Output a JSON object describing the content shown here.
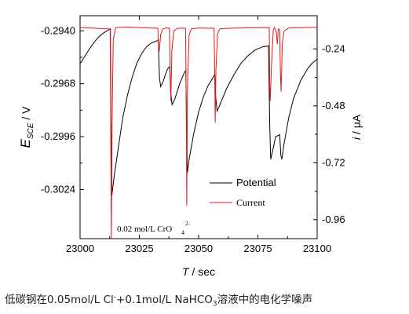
{
  "chart_data": {
    "type": "line",
    "x": {
      "label_var": "T",
      "label_unit": " / sec",
      "range": [
        23000,
        23100
      ],
      "ticks": [
        23000,
        23025,
        23050,
        23075,
        23100
      ],
      "tick_labels": [
        "23000",
        "23025",
        "23050",
        "23075",
        "23100"
      ]
    },
    "y_left": {
      "label_var": "E",
      "label_sub": "SCE",
      "label_unit": " / V",
      "range": [
        -0.305,
        -0.2932
      ],
      "ticks": [
        -0.294,
        -0.2968,
        -0.2996,
        -0.3024
      ],
      "tick_labels": [
        "-0.2940",
        "-0.2968",
        "-0.2996",
        "-0.3024"
      ]
    },
    "y_right": {
      "label_var": "i",
      "label_unit": " / μA",
      "range": [
        -1.04,
        -0.1
      ],
      "ticks": [
        -0.24,
        -0.48,
        -0.72,
        -0.96
      ],
      "tick_labels": [
        "-0.24",
        "-0.48",
        "-0.72",
        "-0.96"
      ]
    },
    "series": [
      {
        "name": "Potential",
        "axis": "left",
        "color": "#000000",
        "points": [
          [
            23000,
            -0.29575
          ],
          [
            23002,
            -0.29535
          ],
          [
            23004,
            -0.29495
          ],
          [
            23006,
            -0.2946
          ],
          [
            23008,
            -0.2943
          ],
          [
            23010,
            -0.2941
          ],
          [
            23012,
            -0.29395
          ],
          [
            23012.8,
            -0.2939
          ],
          [
            23013,
            -0.2987
          ],
          [
            23013.4,
            -0.3027
          ],
          [
            23014.5,
            -0.3016
          ],
          [
            23016,
            -0.3003
          ],
          [
            23018,
            -0.2986
          ],
          [
            23020,
            -0.2974
          ],
          [
            23022,
            -0.29645
          ],
          [
            23024,
            -0.2957
          ],
          [
            23026,
            -0.2952
          ],
          [
            23028,
            -0.29485
          ],
          [
            23030,
            -0.29465
          ],
          [
            23032,
            -0.29455
          ],
          [
            23033,
            -0.2945
          ],
          [
            23033.5,
            -0.2965
          ],
          [
            23034,
            -0.29695
          ],
          [
            23035,
            -0.2967
          ],
          [
            23036,
            -0.2963
          ],
          [
            23037,
            -0.296
          ],
          [
            23037.8,
            -0.2959
          ],
          [
            23038.2,
            -0.2972
          ],
          [
            23038.8,
            -0.2979
          ],
          [
            23040,
            -0.2976
          ],
          [
            23042,
            -0.2968
          ],
          [
            23044,
            -0.2962
          ],
          [
            23044.6,
            -0.2961
          ],
          [
            23045,
            -0.3
          ],
          [
            23045.3,
            -0.3015
          ],
          [
            23046,
            -0.3008
          ],
          [
            23048,
            -0.2994
          ],
          [
            23050,
            -0.2983
          ],
          [
            23052,
            -0.2975
          ],
          [
            23054,
            -0.2969
          ],
          [
            23056,
            -0.2965
          ],
          [
            23056.8,
            -0.2963
          ],
          [
            23057.2,
            -0.2975
          ],
          [
            23057.8,
            -0.29825
          ],
          [
            23059,
            -0.2979
          ],
          [
            23062,
            -0.297
          ],
          [
            23065,
            -0.2963
          ],
          [
            23068,
            -0.2957
          ],
          [
            23071,
            -0.2953
          ],
          [
            23074,
            -0.295
          ],
          [
            23077,
            -0.29485
          ],
          [
            23079.5,
            -0.2948
          ],
          [
            23080,
            -0.299
          ],
          [
            23080.4,
            -0.3008
          ],
          [
            23081.5,
            -0.3002
          ],
          [
            23082.5,
            -0.2996
          ],
          [
            23083.5,
            -0.29955
          ],
          [
            23084.2,
            -0.2995
          ],
          [
            23084.7,
            -0.3006
          ],
          [
            23085.1,
            -0.3008
          ],
          [
            23086,
            -0.3
          ],
          [
            23088,
            -0.2986
          ],
          [
            23090,
            -0.2976
          ],
          [
            23093,
            -0.29665
          ],
          [
            23096,
            -0.296
          ],
          [
            23098,
            -0.2957
          ],
          [
            23100,
            -0.2955
          ]
        ]
      },
      {
        "name": "Current",
        "axis": "right",
        "color": "#e8141c",
        "points": [
          [
            23000,
            -0.15
          ],
          [
            23005,
            -0.152
          ],
          [
            23010,
            -0.155
          ],
          [
            23012.7,
            -0.156
          ],
          [
            23013,
            -0.7
          ],
          [
            23013.2,
            -1.04
          ],
          [
            23013.5,
            -0.55
          ],
          [
            23014,
            -0.2
          ],
          [
            23015,
            -0.15
          ],
          [
            23020,
            -0.148
          ],
          [
            23025,
            -0.15
          ],
          [
            23030,
            -0.152
          ],
          [
            23032.8,
            -0.153
          ],
          [
            23033.1,
            -0.23
          ],
          [
            23033.4,
            -0.25
          ],
          [
            23034,
            -0.18
          ],
          [
            23035,
            -0.155
          ],
          [
            23036,
            -0.152
          ],
          [
            23037.7,
            -0.153
          ],
          [
            23038,
            -0.35
          ],
          [
            23038.3,
            -0.46
          ],
          [
            23038.7,
            -0.25
          ],
          [
            23039.5,
            -0.165
          ],
          [
            23041,
            -0.153
          ],
          [
            23044.5,
            -0.153
          ],
          [
            23044.8,
            -0.5
          ],
          [
            23045,
            -0.9
          ],
          [
            23045.3,
            -0.4
          ],
          [
            23046,
            -0.18
          ],
          [
            23047,
            -0.155
          ],
          [
            23050,
            -0.152
          ],
          [
            23056.5,
            -0.153
          ],
          [
            23056.8,
            -0.35
          ],
          [
            23057,
            -0.55
          ],
          [
            23057.3,
            -0.33
          ],
          [
            23058,
            -0.175
          ],
          [
            23059,
            -0.155
          ],
          [
            23065,
            -0.152
          ],
          [
            23075,
            -0.151
          ],
          [
            23079.8,
            -0.15
          ],
          [
            23080,
            -0.4
          ],
          [
            23080.2,
            -0.46
          ],
          [
            23080.8,
            -0.3
          ],
          [
            23081.5,
            -0.16
          ],
          [
            23082,
            -0.15
          ],
          [
            23082.8,
            -0.17
          ],
          [
            23083.2,
            -0.22
          ],
          [
            23083.6,
            -0.155
          ],
          [
            23084.2,
            -0.16
          ],
          [
            23084.5,
            -0.34
          ],
          [
            23084.8,
            -0.42
          ],
          [
            23085.3,
            -0.22
          ],
          [
            23086,
            -0.165
          ],
          [
            23088,
            -0.152
          ],
          [
            23095,
            -0.15
          ],
          [
            23100,
            -0.149
          ]
        ]
      }
    ],
    "legend": {
      "position": "lower-right",
      "entries": [
        {
          "label": "Potential",
          "color": "#000000"
        },
        {
          "label": "Current",
          "color": "#e8141c"
        }
      ]
    },
    "annotation": {
      "text": "0.02 mol/L CrO",
      "sub": "4",
      "sup": "2-"
    },
    "grid": false
  },
  "caption": {
    "part1": "低碳钢在0.05mol/L Cl",
    "part1_sup": "-",
    "part2": "+0.1mol/L NaHCO",
    "part2_sub": "3",
    "part3": "溶液中的电化学噪声"
  }
}
